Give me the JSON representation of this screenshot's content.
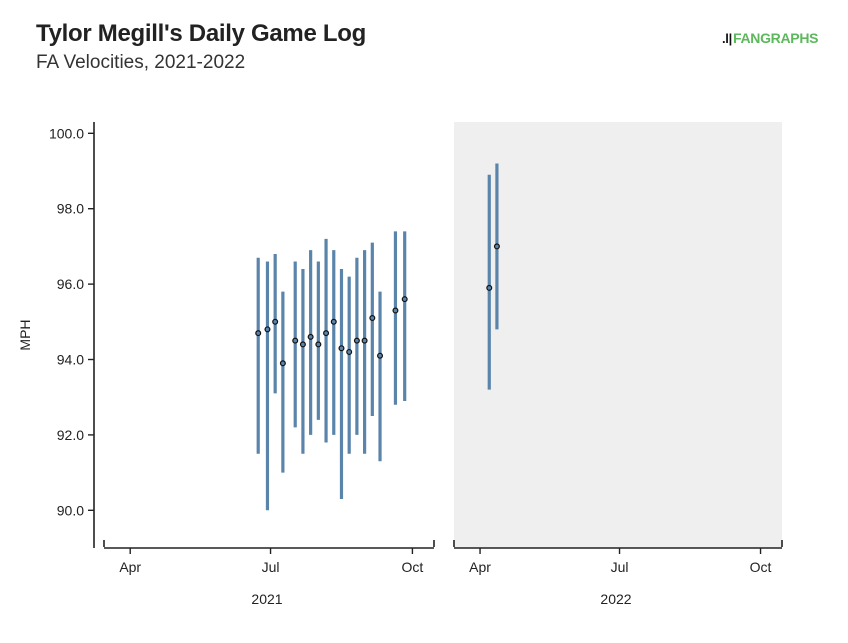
{
  "header": {
    "title": "Tylor Megill's Daily Game Log",
    "subtitle": "FA Velocities, 2021-2022",
    "logo_text": "FANGRAPHS",
    "logo_mark": ".l|"
  },
  "colors": {
    "bar": "#5b84ab",
    "point_fill": "#5b84ab",
    "point_stroke": "#111111",
    "panel_2022_bg": "#efefef",
    "logo_green": "#5cb85c"
  },
  "chart_data": {
    "type": "range",
    "title": "Tylor Megill's Daily Game Log",
    "subtitle": "FA Velocities, 2021-2022",
    "ylabel": "MPH",
    "ylim": [
      89.0,
      100.3
    ],
    "yticks": [
      90.0,
      92.0,
      94.0,
      96.0,
      98.0,
      100.0
    ],
    "ytick_labels": [
      "90.0",
      "92.0",
      "94.0",
      "96.0",
      "98.0",
      "100.0"
    ],
    "panels": [
      {
        "label": "2021",
        "xlim": [
          "2021-03-15",
          "2021-10-15"
        ],
        "xticks": [
          "2021-04-01",
          "2021-07-01",
          "2021-10-01"
        ],
        "xtick_labels": [
          "Apr",
          "Jul",
          "Oct"
        ],
        "points": [
          {
            "date": "2021-06-23",
            "min": 91.5,
            "max": 96.7,
            "avg": 94.7
          },
          {
            "date": "2021-06-29",
            "min": 90.0,
            "max": 96.6,
            "avg": 94.8
          },
          {
            "date": "2021-07-04",
            "min": 93.1,
            "max": 96.8,
            "avg": 95.0
          },
          {
            "date": "2021-07-09",
            "min": 91.0,
            "max": 95.8,
            "avg": 93.9
          },
          {
            "date": "2021-07-17",
            "min": 92.2,
            "max": 96.6,
            "avg": 94.5
          },
          {
            "date": "2021-07-22",
            "min": 91.5,
            "max": 96.4,
            "avg": 94.4
          },
          {
            "date": "2021-07-27",
            "min": 92.0,
            "max": 96.9,
            "avg": 94.6
          },
          {
            "date": "2021-08-01",
            "min": 92.4,
            "max": 96.6,
            "avg": 94.4
          },
          {
            "date": "2021-08-06",
            "min": 91.8,
            "max": 97.2,
            "avg": 94.7
          },
          {
            "date": "2021-08-11",
            "min": 92.0,
            "max": 96.9,
            "avg": 95.0
          },
          {
            "date": "2021-08-16",
            "min": 90.3,
            "max": 96.4,
            "avg": 94.3
          },
          {
            "date": "2021-08-21",
            "min": 91.5,
            "max": 96.2,
            "avg": 94.2
          },
          {
            "date": "2021-08-26",
            "min": 92.0,
            "max": 96.7,
            "avg": 94.5
          },
          {
            "date": "2021-08-31",
            "min": 91.5,
            "max": 96.9,
            "avg": 94.5
          },
          {
            "date": "2021-09-05",
            "min": 92.5,
            "max": 97.1,
            "avg": 95.1
          },
          {
            "date": "2021-09-10",
            "min": 91.3,
            "max": 95.8,
            "avg": 94.1
          },
          {
            "date": "2021-09-20",
            "min": 92.8,
            "max": 97.4,
            "avg": 95.3
          },
          {
            "date": "2021-09-26",
            "min": 92.9,
            "max": 97.4,
            "avg": 95.6
          }
        ]
      },
      {
        "label": "2022",
        "xlim": [
          "2022-03-15",
          "2022-10-15"
        ],
        "xticks": [
          "2022-04-01",
          "2022-07-01",
          "2022-10-01"
        ],
        "xtick_labels": [
          "Apr",
          "Jul",
          "Oct"
        ],
        "points": [
          {
            "date": "2022-04-07",
            "min": 93.2,
            "max": 98.9,
            "avg": 95.9
          },
          {
            "date": "2022-04-12",
            "min": 94.8,
            "max": 99.2,
            "avg": 97.0
          }
        ]
      }
    ]
  }
}
